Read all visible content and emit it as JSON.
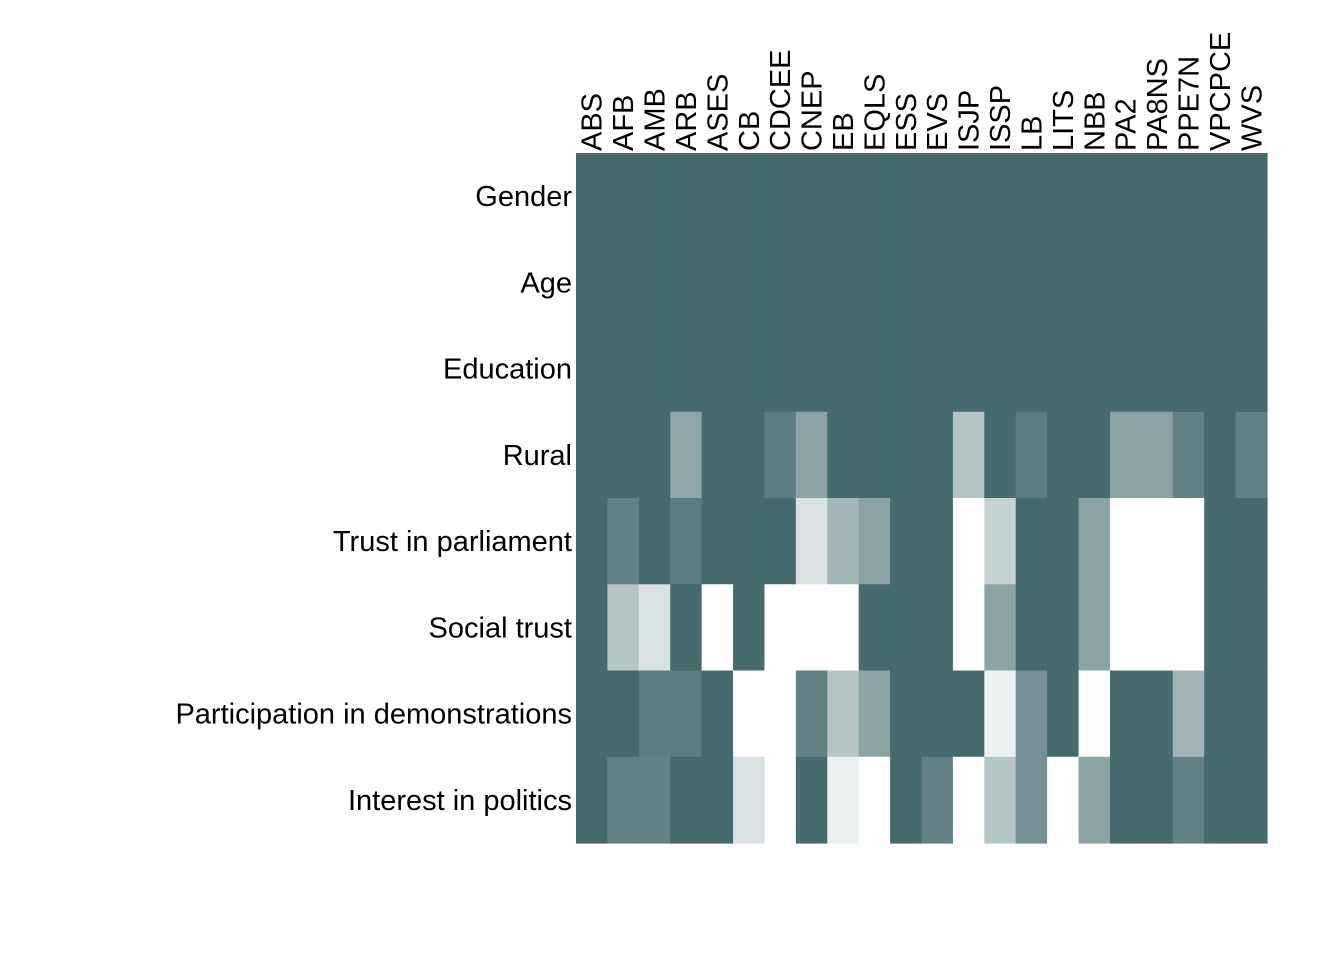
{
  "chart_data": {
    "type": "heatmap",
    "title": "",
    "xlabel": "",
    "ylabel": "",
    "legend": "none",
    "grid": false,
    "colors": {
      "full": "#456b6d",
      "empty": "#ffffff"
    },
    "columns": [
      "ABS",
      "AFB",
      "AMB",
      "ARB",
      "ASES",
      "CB",
      "CDCEE",
      "CNEP",
      "EB",
      "EQLS",
      "ESS",
      "EVS",
      "ISJP",
      "ISSP",
      "LB",
      "LITS",
      "NBB",
      "PA2",
      "PA8NS",
      "PPE7N",
      "VPCPCE",
      "WVS"
    ],
    "rows": [
      "Gender",
      "Age",
      "Education",
      "Rural",
      "Trust in parliament",
      "Social trust",
      "Participation in demonstrations",
      "Interest in politics"
    ],
    "values": [
      [
        1,
        1,
        1,
        1,
        1,
        1,
        1,
        1,
        1,
        1,
        1,
        1,
        1,
        1,
        1,
        1,
        1,
        1,
        1,
        1,
        1,
        1
      ],
      [
        1,
        1,
        1,
        1,
        1,
        1,
        1,
        1,
        1,
        1,
        1,
        1,
        1,
        1,
        1,
        1,
        1,
        1,
        1,
        1,
        1,
        1
      ],
      [
        1,
        1,
        1,
        1,
        1,
        1,
        1,
        1,
        1,
        1,
        1,
        1,
        1,
        1,
        1,
        1,
        1,
        1,
        1,
        1,
        1,
        1
      ],
      [
        1,
        1,
        1,
        0.6,
        1,
        1,
        0.88,
        0.62,
        1,
        1,
        1,
        1,
        0.4,
        1,
        0.88,
        1,
        1,
        0.62,
        0.62,
        0.85,
        1,
        0.85
      ],
      [
        1,
        0.85,
        1,
        0.88,
        1,
        1,
        1,
        0.2,
        0.5,
        0.62,
        1,
        1,
        0,
        0.3,
        1,
        1,
        0.62,
        0,
        0,
        0,
        1,
        1
      ],
      [
        1,
        0.4,
        0.2,
        1,
        0,
        1,
        0,
        0,
        0,
        1,
        1,
        1,
        0,
        0.62,
        1,
        1,
        0.62,
        0,
        0,
        0,
        1,
        1
      ],
      [
        1,
        1,
        0.88,
        0.88,
        1,
        0,
        0,
        0.85,
        0.4,
        0.62,
        1,
        1,
        1,
        0.1,
        0.75,
        1,
        0,
        1,
        1,
        0.5,
        1,
        1
      ],
      [
        1,
        0.85,
        0.85,
        1,
        1,
        0.2,
        0,
        1,
        0.1,
        0,
        1,
        0.85,
        0,
        0.4,
        0.75,
        0,
        0.62,
        1,
        1,
        0.85,
        1,
        1
      ]
    ]
  }
}
